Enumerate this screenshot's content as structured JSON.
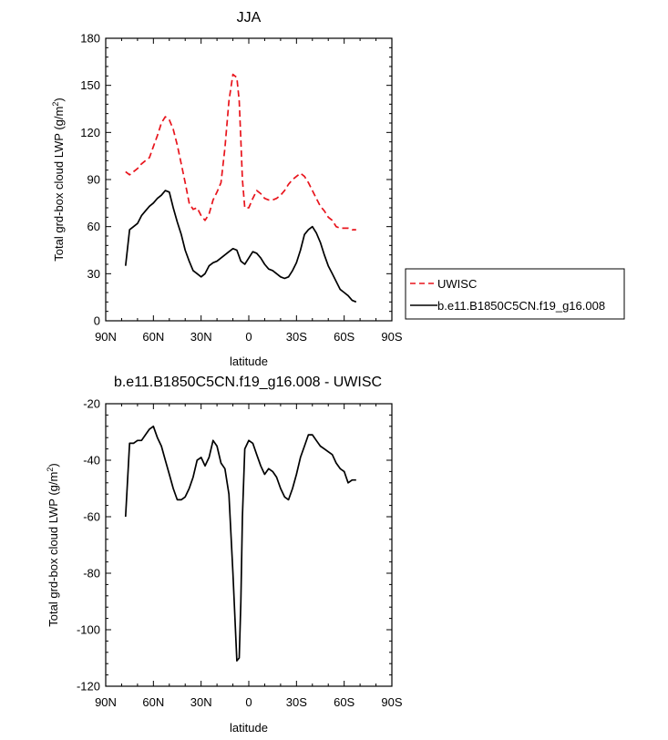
{
  "chart_data": [
    {
      "type": "line",
      "title": "JJA",
      "xlabel": "latitude",
      "ylabel": "Total grd-box cloud LWP (g/m²)",
      "ylabel_main": "Total grd-box cloud LWP (g/m",
      "ylabel_sup": "2",
      "ylabel_tail": ")",
      "xlim": [
        90,
        -90
      ],
      "ylim": [
        0,
        180
      ],
      "x_ticks": [
        90,
        60,
        30,
        0,
        -30,
        -60,
        -90
      ],
      "x_tick_labels": [
        "90N",
        "60N",
        "30N",
        "0",
        "30S",
        "60S",
        "90S"
      ],
      "y_ticks": [
        0,
        30,
        60,
        90,
        120,
        150,
        180
      ],
      "y_tick_labels": [
        "0",
        "30",
        "60",
        "90",
        "120",
        "150",
        "180"
      ],
      "legend_position": "outside-right",
      "series": [
        {
          "name": "UWISC",
          "color": "#e8141c",
          "dash": "dashed",
          "x": [
            77.5,
            75,
            72.5,
            70,
            67.5,
            65,
            62.5,
            60,
            57.5,
            55,
            52.5,
            50,
            47.5,
            45,
            42.5,
            40,
            37.5,
            35,
            32.5,
            30,
            27.5,
            25,
            22.5,
            20,
            17.5,
            15,
            12.5,
            10,
            7.5,
            6,
            5,
            4,
            2.5,
            0,
            -2.5,
            -5,
            -7.5,
            -10,
            -12.5,
            -15,
            -17.5,
            -20,
            -22.5,
            -25,
            -27.5,
            -30,
            -32.5,
            -35,
            -37.5,
            -40,
            -42.5,
            -45,
            -47.5,
            -50,
            -52.5,
            -55,
            -57.5,
            -60,
            -62.5,
            -65,
            -67.5
          ],
          "values": [
            95,
            93,
            95,
            97,
            100,
            102,
            104,
            111,
            118,
            126,
            130,
            128,
            122,
            112,
            100,
            88,
            75,
            71,
            72,
            67,
            64,
            68,
            77,
            82,
            88,
            110,
            140,
            157,
            155,
            140,
            115,
            90,
            72,
            72,
            78,
            83,
            81,
            78,
            77,
            77,
            78,
            80,
            83,
            87,
            90,
            92,
            94,
            92,
            88,
            83,
            78,
            73,
            70,
            66,
            64,
            60,
            59,
            59,
            59,
            58,
            58
          ]
        },
        {
          "name": "b.e11.B1850C5CN.f19_g16.008",
          "color": "#000000",
          "dash": "solid",
          "x": [
            77.5,
            75,
            72.5,
            70,
            67.5,
            65,
            62.5,
            60,
            57.5,
            55,
            52.5,
            50,
            47.5,
            45,
            42.5,
            40,
            37.5,
            35,
            32.5,
            30,
            27.5,
            25,
            22.5,
            20,
            17.5,
            15,
            12.5,
            10,
            7.5,
            5,
            2.5,
            0,
            -2.5,
            -5,
            -7.5,
            -10,
            -12.5,
            -15,
            -17.5,
            -20,
            -22.5,
            -25,
            -27.5,
            -30,
            -32.5,
            -35,
            -37.5,
            -40,
            -42.5,
            -45,
            -47.5,
            -50,
            -52.5,
            -55,
            -57.5,
            -60,
            -62.5,
            -65,
            -67.5
          ],
          "values": [
            35,
            58,
            60,
            62,
            67,
            70,
            73,
            75,
            78,
            80,
            83,
            82,
            72,
            63,
            55,
            45,
            38,
            32,
            30,
            28,
            30,
            35,
            37,
            38,
            40,
            42,
            44,
            46,
            45,
            38,
            36,
            40,
            44,
            43,
            40,
            36,
            33,
            32,
            30,
            28,
            27,
            28,
            32,
            37,
            45,
            55,
            58,
            60,
            56,
            50,
            42,
            35,
            30,
            25,
            20,
            18,
            16,
            13,
            12
          ]
        }
      ]
    },
    {
      "type": "line",
      "title": "b.e11.B1850C5CN.f19_g16.008 - UWISC",
      "xlabel": "latitude",
      "ylabel": "Total grd-box cloud LWP (g/m²)",
      "ylabel_main": "Total grd-box cloud LWP (g/m",
      "ylabel_sup": "2",
      "ylabel_tail": ")",
      "xlim": [
        90,
        -90
      ],
      "ylim": [
        -120,
        -20
      ],
      "x_ticks": [
        90,
        60,
        30,
        0,
        -30,
        -60,
        -90
      ],
      "x_tick_labels": [
        "90N",
        "60N",
        "30N",
        "0",
        "30S",
        "60S",
        "90S"
      ],
      "y_ticks": [
        -120,
        -100,
        -80,
        -60,
        -40,
        -20
      ],
      "y_tick_labels": [
        "-120",
        "-100",
        "-80",
        "-60",
        "-40",
        "-20"
      ],
      "series": [
        {
          "color": "#000000",
          "dash": "solid",
          "x": [
            77.5,
            75,
            72.5,
            70,
            67.5,
            65,
            62.5,
            60,
            57.5,
            55,
            52.5,
            50,
            47.5,
            45,
            42.5,
            40,
            37.5,
            35,
            32.5,
            30,
            27.5,
            25,
            22.5,
            20,
            17.5,
            15,
            12.5,
            10,
            7.5,
            6,
            5,
            4,
            2.5,
            0,
            -2.5,
            -5,
            -7.5,
            -10,
            -12.5,
            -15,
            -17.5,
            -20,
            -22.5,
            -25,
            -27.5,
            -30,
            -32.5,
            -35,
            -37.5,
            -40,
            -42.5,
            -45,
            -47.5,
            -50,
            -52.5,
            -55,
            -57.5,
            -60,
            -62.5,
            -65,
            -67.5
          ],
          "values": [
            -60,
            -34,
            -34,
            -33,
            -33,
            -31,
            -29,
            -28,
            -32,
            -35,
            -40,
            -45,
            -50,
            -54,
            -54,
            -53,
            -50,
            -46,
            -40,
            -39,
            -42,
            -39,
            -33,
            -35,
            -41,
            -43,
            -52,
            -80,
            -111,
            -110,
            -90,
            -60,
            -36,
            -33,
            -34,
            -38,
            -42,
            -45,
            -43,
            -44,
            -46,
            -50,
            -53,
            -54,
            -50,
            -45,
            -39,
            -35,
            -31,
            -31,
            -33,
            -35,
            -36,
            -37,
            -38,
            -41,
            -43,
            -44,
            -48,
            -47,
            -47
          ]
        }
      ]
    }
  ]
}
